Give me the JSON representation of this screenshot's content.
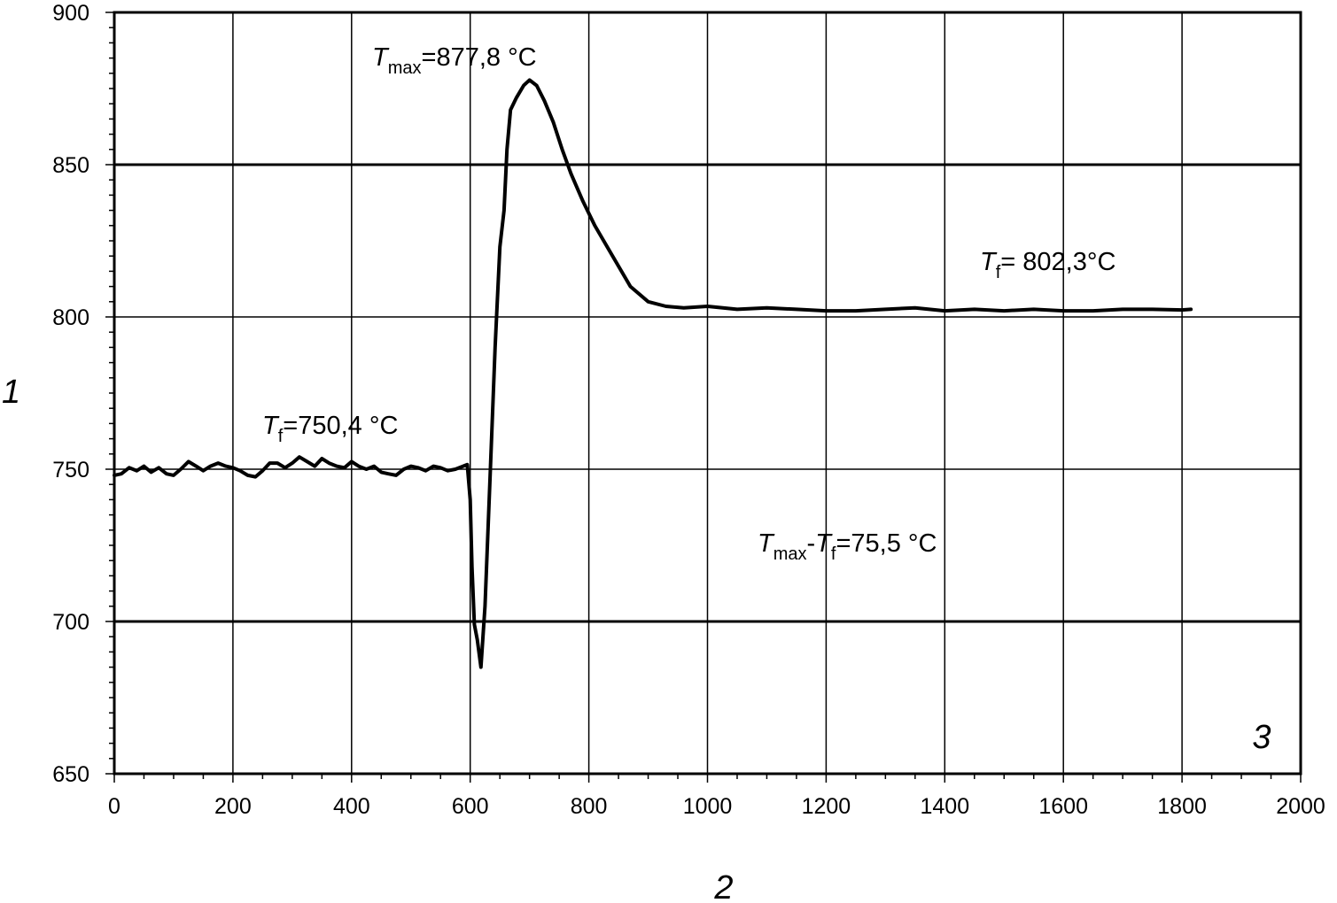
{
  "chart_data": {
    "type": "line",
    "title": "",
    "ylabel": "1",
    "xlabel": "2",
    "corner_label": "3",
    "xlim": [
      0,
      2000
    ],
    "ylim": [
      650,
      900
    ],
    "x_ticks": [
      0,
      200,
      400,
      600,
      800,
      1000,
      1200,
      1400,
      1600,
      1800,
      2000
    ],
    "y_ticks": [
      650,
      700,
      750,
      800,
      850,
      900
    ],
    "x_tick_labels": [
      "0",
      "200",
      "400",
      "600",
      "800",
      "1000",
      "1200",
      "1400",
      "1600",
      "1800",
      "2000"
    ],
    "y_tick_labels": [
      "650",
      "700",
      "750",
      "800",
      "850",
      "900"
    ],
    "grid": true,
    "series": [
      {
        "color": "#000000",
        "points": [
          [
            0,
            748
          ],
          [
            12,
            748.5
          ],
          [
            25,
            750.5
          ],
          [
            38,
            749.5
          ],
          [
            50,
            751
          ],
          [
            62,
            749
          ],
          [
            75,
            750.5
          ],
          [
            88,
            748.5
          ],
          [
            100,
            748
          ],
          [
            112,
            750
          ],
          [
            125,
            752.5
          ],
          [
            138,
            751
          ],
          [
            150,
            749.5
          ],
          [
            162,
            751
          ],
          [
            175,
            752
          ],
          [
            188,
            751
          ],
          [
            200,
            750.5
          ],
          [
            212,
            749.5
          ],
          [
            225,
            748
          ],
          [
            238,
            747.5
          ],
          [
            250,
            749.5
          ],
          [
            262,
            752
          ],
          [
            275,
            752
          ],
          [
            288,
            750.5
          ],
          [
            300,
            752
          ],
          [
            312,
            754
          ],
          [
            325,
            752.5
          ],
          [
            338,
            751
          ],
          [
            350,
            753.5
          ],
          [
            362,
            752
          ],
          [
            375,
            751
          ],
          [
            388,
            750.5
          ],
          [
            400,
            752.5
          ],
          [
            412,
            751
          ],
          [
            425,
            750
          ],
          [
            438,
            751
          ],
          [
            450,
            749
          ],
          [
            462,
            748.5
          ],
          [
            475,
            748
          ],
          [
            488,
            750
          ],
          [
            500,
            751
          ],
          [
            512,
            750.5
          ],
          [
            525,
            749.5
          ],
          [
            538,
            751
          ],
          [
            550,
            750.5
          ],
          [
            562,
            749.5
          ],
          [
            575,
            750
          ],
          [
            588,
            751
          ],
          [
            595,
            751.5
          ],
          [
            600,
            740
          ],
          [
            603,
            718
          ],
          [
            607,
            699
          ],
          [
            612,
            694
          ],
          [
            618,
            685
          ],
          [
            625,
            705
          ],
          [
            633,
            745
          ],
          [
            642,
            790
          ],
          [
            650,
            823
          ],
          [
            657,
            835
          ],
          [
            662,
            855
          ],
          [
            668,
            868
          ],
          [
            678,
            872
          ],
          [
            690,
            876
          ],
          [
            700,
            877.8
          ],
          [
            712,
            876
          ],
          [
            725,
            871
          ],
          [
            740,
            864
          ],
          [
            755,
            855
          ],
          [
            770,
            847
          ],
          [
            790,
            838
          ],
          [
            810,
            830
          ],
          [
            840,
            820
          ],
          [
            870,
            810
          ],
          [
            900,
            805
          ],
          [
            930,
            803.5
          ],
          [
            960,
            803
          ],
          [
            1000,
            803.5
          ],
          [
            1050,
            802.5
          ],
          [
            1100,
            803
          ],
          [
            1150,
            802.5
          ],
          [
            1200,
            802
          ],
          [
            1250,
            802
          ],
          [
            1300,
            802.5
          ],
          [
            1350,
            803
          ],
          [
            1400,
            802
          ],
          [
            1450,
            802.5
          ],
          [
            1500,
            802
          ],
          [
            1550,
            802.5
          ],
          [
            1600,
            802
          ],
          [
            1650,
            802
          ],
          [
            1700,
            802.5
          ],
          [
            1750,
            802.5
          ],
          [
            1800,
            802.3
          ],
          [
            1815,
            802.5
          ]
        ]
      }
    ],
    "annotations": [
      {
        "text": "T",
        "sub": "max",
        "rest": "=877,8 °C",
        "x": 700,
        "y": 893
      },
      {
        "text": "T",
        "sub": "f",
        "rest": "= 802,3°C",
        "x": 1680,
        "y": 815
      },
      {
        "text": "T",
        "sub": "f",
        "rest": "=750,4 °C",
        "x": 330,
        "y": 762
      },
      {
        "text": "T",
        "sub": "max",
        "rest": "",
        "text2": "T",
        "sub2": "f",
        "rest2": "=75,5 °C",
        "x": 990,
        "y": 725
      }
    ]
  }
}
